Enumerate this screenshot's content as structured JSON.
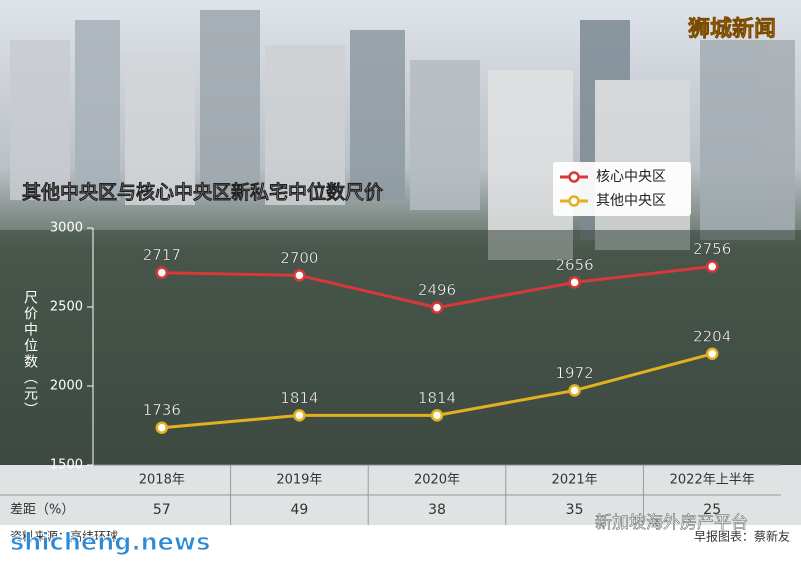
{
  "chart_data": {
    "type": "line",
    "title": "其他中央区与核心中央区新私宅中位数尺价",
    "ylabel": "尺价中位数（元）",
    "categories": [
      "2018年",
      "2019年",
      "2020年",
      "2021年",
      "2022年上半年"
    ],
    "series": [
      {
        "name": "核心中央区",
        "color": "#d9383a",
        "values": [
          2717,
          2700,
          2496,
          2656,
          2756
        ]
      },
      {
        "name": "其他中央区",
        "color": "#e3b020",
        "values": [
          1736,
          1814,
          1814,
          1972,
          2204
        ]
      }
    ],
    "ylim": [
      1500,
      3000
    ],
    "yticks": [
      1500,
      2000,
      2500,
      3000
    ],
    "legend": "top-right",
    "gap": {
      "label": "差距（%）",
      "values": [
        57,
        49,
        38,
        35,
        25
      ]
    },
    "source": "资料来源：高纬环球",
    "credit": "早报图表：蔡新友",
    "brand": "狮城新闻",
    "watermarks": [
      "新加坡海外房产平台",
      "shicheng.news"
    ]
  }
}
